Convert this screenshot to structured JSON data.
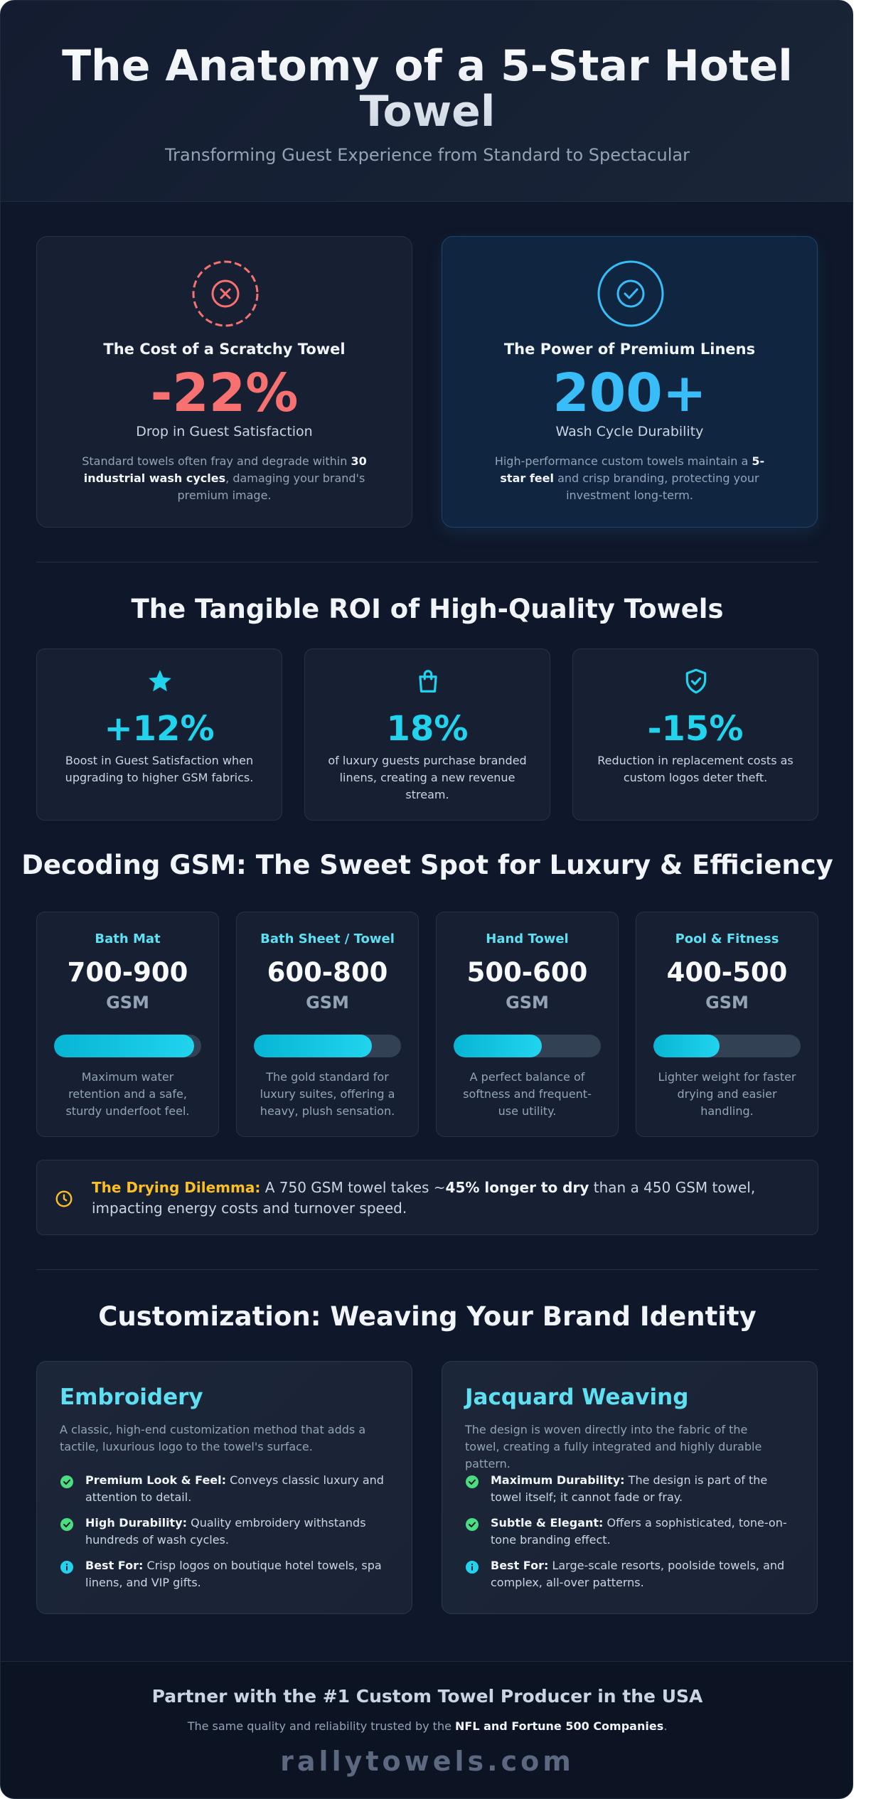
{
  "header": {
    "title": "The Anatomy of a 5-Star Hotel Towel",
    "subtitle": "Transforming Guest Experience from Standard to Spectacular"
  },
  "cost_card": {
    "icon": "x-circle-icon",
    "title": "The Cost of a Scratchy Towel",
    "value": "-22%",
    "value_label": "Drop in Guest Satisfaction",
    "desc_pre": "Standard towels often fray and degrade within ",
    "desc_bold": "30 industrial wash cycles",
    "desc_post": ", damaging your brand's premium image."
  },
  "power_card": {
    "icon": "check-circle-icon",
    "title": "The Power of Premium Linens",
    "value": "200+",
    "value_label": "Wash Cycle Durability",
    "desc_pre": "High-performance custom towels maintain a ",
    "desc_bold": "5-star feel",
    "desc_post": " and crisp branding, protecting your investment long-term."
  },
  "roi": {
    "title": "The Tangible ROI of High-Quality Towels",
    "items": [
      {
        "icon": "star-icon",
        "value": "+12%",
        "text": "Boost in Guest Satisfaction when upgrading to higher GSM fabrics."
      },
      {
        "icon": "shopping-bag-icon",
        "value": "18%",
        "text": "of luxury guests purchase branded linens, creating a new revenue stream."
      },
      {
        "icon": "shield-check-icon",
        "value": "-15%",
        "text": "Reduction in replacement costs as custom logos deter theft."
      }
    ]
  },
  "gsm": {
    "title": "Decoding GSM: The Sweet Spot for Luxury & Efficiency",
    "unit": "GSM",
    "items": [
      {
        "name": "Bath Mat",
        "range": "700-900",
        "level": 0.95,
        "text": "Maximum water retention and a safe, sturdy underfoot feel."
      },
      {
        "name": "Bath Sheet / Towel",
        "range": "600-800",
        "level": 0.8,
        "text": "The gold standard for luxury suites, offering a heavy, plush sensation."
      },
      {
        "name": "Hand Towel",
        "range": "500-600",
        "level": 0.6,
        "text": "A perfect balance of softness and frequent-use utility."
      },
      {
        "name": "Pool & Fitness",
        "range": "400-500",
        "level": 0.45,
        "text": "Lighter weight for faster drying and easier handling."
      }
    ]
  },
  "note": {
    "icon": "clock-icon",
    "label": "The Drying Dilemma:",
    "pre": " A 750 GSM towel takes ~",
    "bold": "45% longer to dry",
    "post": " than a 450 GSM towel, impacting energy costs and turnover speed."
  },
  "custom": {
    "title": "Customization: Weaving Your Brand Identity",
    "cards": [
      {
        "title": "Embroidery",
        "desc": "A classic, high-end customization method that adds a tactile, luxurious logo to the towel's surface.",
        "features": [
          {
            "icon": "check-icon",
            "bold": "Premium Look & Feel:",
            "text": " Conveys classic luxury and attention to detail."
          },
          {
            "icon": "check-icon",
            "bold": "High Durability:",
            "text": " Quality embroidery withstands hundreds of wash cycles."
          },
          {
            "icon": "info-icon",
            "bold": "Best For:",
            "text": " Crisp logos on boutique hotel towels, spa linens, and VIP gifts."
          }
        ]
      },
      {
        "title": "Jacquard Weaving",
        "desc": "The design is woven directly into the fabric of the towel, creating a fully integrated and highly durable pattern.",
        "features": [
          {
            "icon": "check-icon",
            "bold": "Maximum Durability:",
            "text": " The design is part of the towel itself; it cannot fade or fray."
          },
          {
            "icon": "check-icon",
            "bold": "Subtle & Elegant:",
            "text": " Offers a sophisticated, tone-on-tone branding effect."
          },
          {
            "icon": "info-icon",
            "bold": "Best For:",
            "text": " Large-scale resorts, poolside towels, and complex, all-over patterns."
          }
        ]
      }
    ]
  },
  "footer": {
    "title": "Partner with the #1 Custom Towel Producer in the USA",
    "sub_pre": "The same quality and reliability trusted by the ",
    "sub_bold": "NFL and Fortune 500 Companies",
    "sub_post": ".",
    "brand": "rallytowels.com"
  },
  "colors": {
    "background": "#0f172a",
    "negative": "#f87171",
    "positive": "#38bdf8",
    "accent": "#22d3ee",
    "warning": "#fbbf24",
    "success": "#4ade80"
  }
}
